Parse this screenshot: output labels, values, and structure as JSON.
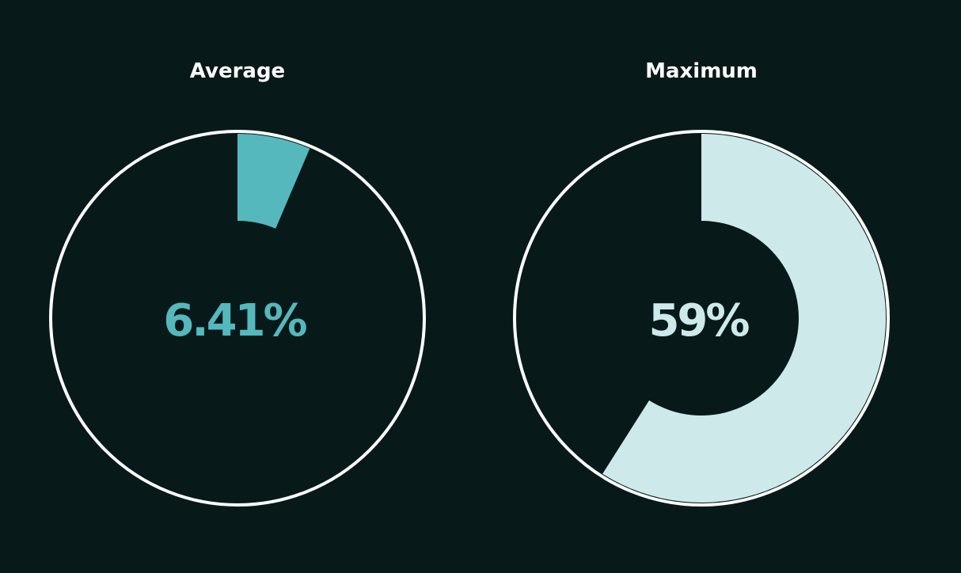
{
  "chart_data": [
    {
      "type": "pie",
      "title": "Average",
      "value": 6.41,
      "value_label": "6.41%",
      "max": 100,
      "fill_color": "#54b8bc",
      "ring_color": "#ffffff",
      "background_color": "#08191a"
    },
    {
      "type": "pie",
      "title": "Maximum",
      "value": 59,
      "value_label": "59%",
      "max": 100,
      "fill_color": "#cde9ea",
      "ring_color": "#ffffff",
      "background_color": "#08191a"
    }
  ]
}
